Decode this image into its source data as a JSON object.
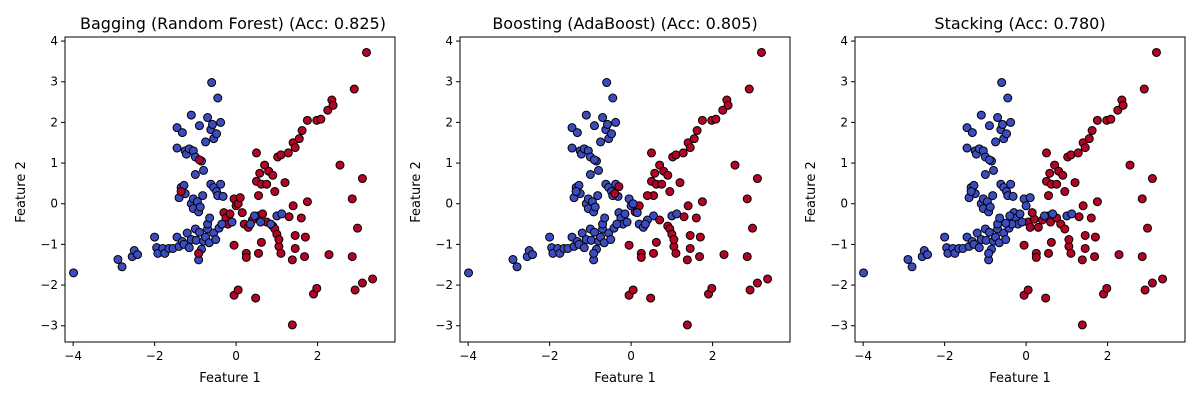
{
  "chart_data": [
    {
      "type": "scatter",
      "title": "Bagging (Random Forest) (Acc: 0.825)",
      "xlabel": "Feature 1",
      "ylabel": "Feature 2",
      "xlim": [
        -4.2,
        3.9
      ],
      "ylim": [
        -3.4,
        4.1
      ],
      "xticks": [
        -4,
        -2,
        0,
        2
      ],
      "yticks": [
        -3,
        -2,
        -1,
        0,
        1,
        2,
        3,
        4
      ],
      "grid": false,
      "colors": {
        "class_0": "#3b4cc0",
        "class_1": "#b40426",
        "edge": "#000000"
      }
    },
    {
      "type": "scatter",
      "title": "Boosting (AdaBoost) (Acc: 0.805)",
      "xlabel": "Feature 1",
      "ylabel": "Feature 2",
      "xlim": [
        -4.2,
        3.9
      ],
      "ylim": [
        -3.4,
        4.1
      ],
      "xticks": [
        -4,
        -2,
        0,
        2
      ],
      "yticks": [
        -3,
        -2,
        -1,
        0,
        1,
        2,
        3,
        4
      ],
      "grid": false,
      "colors": {
        "class_0": "#3b4cc0",
        "class_1": "#b40426",
        "edge": "#000000"
      }
    },
    {
      "type": "scatter",
      "title": "Stacking (Acc: 0.780)",
      "xlabel": "Feature 1",
      "ylabel": "Feature 2",
      "xlim": [
        -4.2,
        3.9
      ],
      "ylim": [
        -3.4,
        4.1
      ],
      "xticks": [
        -4,
        -2,
        0,
        2
      ],
      "yticks": [
        -3,
        -2,
        -1,
        0,
        1,
        2,
        3,
        4
      ],
      "grid": false,
      "colors": {
        "class_0": "#3b4cc0",
        "class_1": "#b40426",
        "edge": "#000000"
      }
    }
  ],
  "points": {
    "common": [
      {
        "x": -3.99,
        "y": -1.7,
        "c": 0
      },
      {
        "x": -2.9,
        "y": -1.37,
        "c": 0
      },
      {
        "x": -2.8,
        "y": -1.55,
        "c": 0
      },
      {
        "x": -2.55,
        "y": -1.3,
        "c": 0
      },
      {
        "x": -2.5,
        "y": -1.15,
        "c": 0
      },
      {
        "x": -2.42,
        "y": -1.25,
        "c": 0
      },
      {
        "x": -2.0,
        "y": -0.82,
        "c": 0
      },
      {
        "x": -1.95,
        "y": -1.08,
        "c": 0
      },
      {
        "x": -1.92,
        "y": -1.22,
        "c": 0
      },
      {
        "x": -1.8,
        "y": -1.1,
        "c": 0
      },
      {
        "x": -1.75,
        "y": -1.22,
        "c": 0
      },
      {
        "x": -1.65,
        "y": -1.1,
        "c": 0
      },
      {
        "x": -1.55,
        "y": -1.1,
        "c": 0
      },
      {
        "x": -1.45,
        "y": -0.82,
        "c": 0
      },
      {
        "x": -1.4,
        "y": -1.05,
        "c": 0
      },
      {
        "x": -1.32,
        "y": -0.93,
        "c": 0
      },
      {
        "x": -1.28,
        "y": -1.0,
        "c": 0
      },
      {
        "x": -1.2,
        "y": -0.72,
        "c": 0
      },
      {
        "x": -1.15,
        "y": -1.08,
        "c": 0
      },
      {
        "x": -1.1,
        "y": -0.88,
        "c": 0
      },
      {
        "x": -1.0,
        "y": -0.62,
        "c": 0
      },
      {
        "x": -0.98,
        "y": -0.9,
        "c": 0
      },
      {
        "x": -0.92,
        "y": -1.38,
        "c": 0
      },
      {
        "x": -0.9,
        "y": -0.7,
        "c": 0
      },
      {
        "x": -0.85,
        "y": -1.12,
        "c": 0
      },
      {
        "x": -0.8,
        "y": -0.92,
        "c": 0
      },
      {
        "x": -0.75,
        "y": -0.82,
        "c": 0
      },
      {
        "x": -0.7,
        "y": -0.62,
        "c": 0
      },
      {
        "x": -0.66,
        "y": -0.96,
        "c": 0
      },
      {
        "x": -0.55,
        "y": -0.72,
        "c": 0
      },
      {
        "x": -0.5,
        "y": -0.88,
        "c": 0
      },
      {
        "x": -0.42,
        "y": -0.6,
        "c": 0
      },
      {
        "x": -1.45,
        "y": 1.37,
        "c": 0
      },
      {
        "x": -1.45,
        "y": 1.87,
        "c": 0
      },
      {
        "x": -1.32,
        "y": 1.75,
        "c": 0
      },
      {
        "x": -1.25,
        "y": 1.3,
        "c": 0
      },
      {
        "x": -1.22,
        "y": 1.22,
        "c": 0
      },
      {
        "x": -1.15,
        "y": 1.35,
        "c": 0
      },
      {
        "x": -1.1,
        "y": 2.18,
        "c": 0
      },
      {
        "x": -1.05,
        "y": 1.3,
        "c": 0
      },
      {
        "x": -1.0,
        "y": 1.15,
        "c": 0
      },
      {
        "x": -0.9,
        "y": 1.92,
        "c": 0
      },
      {
        "x": -0.85,
        "y": 1.05,
        "c": 0
      },
      {
        "x": -0.8,
        "y": 0.82,
        "c": 0
      },
      {
        "x": -0.75,
        "y": 1.52,
        "c": 0
      },
      {
        "x": -0.7,
        "y": 2.12,
        "c": 0
      },
      {
        "x": -0.62,
        "y": 1.82,
        "c": 0
      },
      {
        "x": -0.6,
        "y": 2.98,
        "c": 0
      },
      {
        "x": -0.58,
        "y": 1.95,
        "c": 0
      },
      {
        "x": -0.55,
        "y": 1.6,
        "c": 0
      },
      {
        "x": -0.48,
        "y": 1.72,
        "c": 0
      },
      {
        "x": -0.45,
        "y": 2.6,
        "c": 0
      },
      {
        "x": -0.38,
        "y": 2.0,
        "c": 0
      },
      {
        "x": -1.4,
        "y": 0.15,
        "c": 0
      },
      {
        "x": -1.35,
        "y": 0.4,
        "c": 0
      },
      {
        "x": -1.28,
        "y": 0.45,
        "c": 0
      },
      {
        "x": -1.25,
        "y": 0.25,
        "c": 0
      },
      {
        "x": -1.1,
        "y": 0.0,
        "c": 0
      },
      {
        "x": -1.05,
        "y": 0.12,
        "c": 0
      },
      {
        "x": -1.05,
        "y": -0.12,
        "c": 0
      },
      {
        "x": -1.0,
        "y": 0.72,
        "c": 0
      },
      {
        "x": -0.95,
        "y": 0.05,
        "c": 0
      },
      {
        "x": -0.92,
        "y": -0.2,
        "c": 0
      },
      {
        "x": -0.88,
        "y": -0.08,
        "c": 0
      },
      {
        "x": -0.82,
        "y": 0.2,
        "c": 0
      },
      {
        "x": -0.7,
        "y": -0.5,
        "c": 0
      },
      {
        "x": -0.65,
        "y": -0.35,
        "c": 0
      },
      {
        "x": -0.62,
        "y": 0.48,
        "c": 0
      },
      {
        "x": -0.55,
        "y": 0.4,
        "c": 0
      },
      {
        "x": -0.48,
        "y": 0.3,
        "c": 0
      },
      {
        "x": -0.45,
        "y": 0.2,
        "c": 0
      },
      {
        "x": -0.38,
        "y": 0.48,
        "c": 0
      },
      {
        "x": -0.32,
        "y": 0.18,
        "c": 0
      },
      {
        "x": 1.0,
        "y": -0.3,
        "c": 0
      },
      {
        "x": 1.12,
        "y": -0.25,
        "c": 0
      },
      {
        "x": 0.55,
        "y": -0.3,
        "c": 0
      },
      {
        "x": -0.05,
        "y": -1.02,
        "c": 1
      },
      {
        "x": -0.05,
        "y": -2.25,
        "c": 1
      },
      {
        "x": 0.05,
        "y": -2.12,
        "c": 1
      },
      {
        "x": 0.25,
        "y": -1.22,
        "c": 1
      },
      {
        "x": 0.25,
        "y": -1.32,
        "c": 1
      },
      {
        "x": 0.48,
        "y": -2.32,
        "c": 1
      },
      {
        "x": 0.55,
        "y": -1.22,
        "c": 1
      },
      {
        "x": 0.62,
        "y": -0.95,
        "c": 1
      },
      {
        "x": 1.05,
        "y": -1.05,
        "c": 1
      },
      {
        "x": 1.1,
        "y": -1.22,
        "c": 1
      },
      {
        "x": 1.38,
        "y": -1.38,
        "c": 1
      },
      {
        "x": 1.38,
        "y": -2.98,
        "c": 1
      },
      {
        "x": 1.45,
        "y": -1.1,
        "c": 1
      },
      {
        "x": 1.68,
        "y": -1.3,
        "c": 1
      },
      {
        "x": 1.9,
        "y": -2.22,
        "c": 1
      },
      {
        "x": 1.98,
        "y": -2.08,
        "c": 1
      },
      {
        "x": 2.28,
        "y": -1.25,
        "c": 1
      },
      {
        "x": 2.85,
        "y": -1.3,
        "c": 1
      },
      {
        "x": 2.92,
        "y": -2.12,
        "c": 1
      },
      {
        "x": 3.1,
        "y": -1.95,
        "c": 1
      },
      {
        "x": 3.35,
        "y": -1.85,
        "c": 1
      },
      {
        "x": 2.98,
        "y": -0.6,
        "c": 1
      },
      {
        "x": 1.3,
        "y": -0.32,
        "c": 1
      },
      {
        "x": 1.4,
        "y": -0.05,
        "c": 1
      },
      {
        "x": 1.45,
        "y": -0.78,
        "c": 1
      },
      {
        "x": 1.6,
        "y": -0.35,
        "c": 1
      },
      {
        "x": 1.7,
        "y": -0.82,
        "c": 1
      },
      {
        "x": 1.75,
        "y": 0.05,
        "c": 1
      },
      {
        "x": 0.5,
        "y": 0.55,
        "c": 1
      },
      {
        "x": 0.55,
        "y": 0.2,
        "c": 1
      },
      {
        "x": 0.58,
        "y": 0.75,
        "c": 1
      },
      {
        "x": 0.62,
        "y": 0.48,
        "c": 1
      },
      {
        "x": 0.7,
        "y": 0.95,
        "c": 1
      },
      {
        "x": 0.75,
        "y": 0.48,
        "c": 1
      },
      {
        "x": 0.8,
        "y": 0.8,
        "c": 1
      },
      {
        "x": 0.9,
        "y": 0.7,
        "c": 1
      },
      {
        "x": 0.95,
        "y": 0.3,
        "c": 1
      },
      {
        "x": 1.02,
        "y": 1.15,
        "c": 1
      },
      {
        "x": 1.1,
        "y": 1.2,
        "c": 1
      },
      {
        "x": 1.2,
        "y": 0.52,
        "c": 1
      },
      {
        "x": 1.28,
        "y": 1.25,
        "c": 1
      },
      {
        "x": 1.4,
        "y": 1.5,
        "c": 1
      },
      {
        "x": 1.45,
        "y": 1.38,
        "c": 1
      },
      {
        "x": 1.55,
        "y": 1.6,
        "c": 1
      },
      {
        "x": 1.62,
        "y": 1.8,
        "c": 1
      },
      {
        "x": 1.75,
        "y": 2.05,
        "c": 1
      },
      {
        "x": 1.98,
        "y": 2.05,
        "c": 1
      },
      {
        "x": 2.08,
        "y": 2.08,
        "c": 1
      },
      {
        "x": 2.25,
        "y": 2.3,
        "c": 1
      },
      {
        "x": 2.35,
        "y": 2.55,
        "c": 1
      },
      {
        "x": 2.38,
        "y": 2.42,
        "c": 1
      },
      {
        "x": 2.55,
        "y": 0.95,
        "c": 1
      },
      {
        "x": 2.85,
        "y": 0.12,
        "c": 1
      },
      {
        "x": 2.9,
        "y": 2.82,
        "c": 1
      },
      {
        "x": 3.1,
        "y": 0.62,
        "c": 1
      },
      {
        "x": 3.2,
        "y": 3.72,
        "c": 1
      },
      {
        "x": 0.5,
        "y": 1.25,
        "c": 1
      }
    ],
    "per_chart": [
      [
        {
          "x": -1.35,
          "y": 0.3,
          "c": 1
        },
        {
          "x": -0.9,
          "y": 1.08,
          "c": 1
        },
        {
          "x": -0.92,
          "y": -1.22,
          "c": 1
        },
        {
          "x": -0.3,
          "y": -0.22,
          "c": 1
        },
        {
          "x": -0.25,
          "y": -0.35,
          "c": 1
        },
        {
          "x": -0.2,
          "y": -0.5,
          "c": 1
        },
        {
          "x": -0.15,
          "y": -0.25,
          "c": 1
        },
        {
          "x": -0.05,
          "y": 0.12,
          "c": 1
        },
        {
          "x": 0.0,
          "y": -0.05,
          "c": 1
        },
        {
          "x": 0.05,
          "y": 0.0,
          "c": 1
        },
        {
          "x": 0.1,
          "y": 0.15,
          "c": 1
        },
        {
          "x": 0.15,
          "y": -0.22,
          "c": 1
        },
        {
          "x": 0.2,
          "y": -0.5,
          "c": 1
        },
        {
          "x": 0.3,
          "y": -0.58,
          "c": 1
        },
        {
          "x": 0.4,
          "y": -0.4,
          "c": 1
        },
        {
          "x": 0.65,
          "y": -0.25,
          "c": 1
        },
        {
          "x": 0.75,
          "y": -0.45,
          "c": 1
        },
        {
          "x": 0.9,
          "y": -0.55,
          "c": 1
        },
        {
          "x": 0.95,
          "y": -0.62,
          "c": 1
        },
        {
          "x": 1.0,
          "y": -0.75,
          "c": 1
        },
        {
          "x": 1.05,
          "y": -0.88,
          "c": 1
        },
        {
          "x": -0.35,
          "y": -0.5,
          "c": 0
        },
        {
          "x": -0.1,
          "y": -0.45,
          "c": 0
        },
        {
          "x": 0.35,
          "y": -0.5,
          "c": 0
        },
        {
          "x": 0.45,
          "y": -0.3,
          "c": 0
        },
        {
          "x": 0.6,
          "y": -0.45,
          "c": 0
        },
        {
          "x": 0.85,
          "y": -0.5,
          "c": 0
        }
      ],
      [
        {
          "x": 0.4,
          "y": 0.2,
          "c": 1
        },
        {
          "x": 0.1,
          "y": -0.2,
          "c": 1
        },
        {
          "x": 0.2,
          "y": -0.05,
          "c": 1
        },
        {
          "x": 0.9,
          "y": -0.55,
          "c": 1
        },
        {
          "x": 0.95,
          "y": -0.62,
          "c": 1
        },
        {
          "x": 1.0,
          "y": -0.75,
          "c": 1
        },
        {
          "x": 1.05,
          "y": -0.88,
          "c": 1
        },
        {
          "x": 0.7,
          "y": -0.4,
          "c": 1
        },
        {
          "x": -0.3,
          "y": -0.22,
          "c": 0
        },
        {
          "x": -0.25,
          "y": -0.35,
          "c": 0
        },
        {
          "x": -0.2,
          "y": -0.5,
          "c": 0
        },
        {
          "x": -0.15,
          "y": -0.25,
          "c": 0
        },
        {
          "x": -0.05,
          "y": 0.12,
          "c": 0
        },
        {
          "x": 0.0,
          "y": -0.05,
          "c": 0
        },
        {
          "x": 0.05,
          "y": 0.0,
          "c": 0
        },
        {
          "x": 0.15,
          "y": -0.22,
          "c": 0
        },
        {
          "x": 0.2,
          "y": -0.5,
          "c": 0
        },
        {
          "x": 0.3,
          "y": -0.58,
          "c": 0
        },
        {
          "x": 0.4,
          "y": -0.4,
          "c": 0
        },
        {
          "x": -0.35,
          "y": -0.5,
          "c": 0
        },
        {
          "x": -0.1,
          "y": -0.45,
          "c": 0
        },
        {
          "x": 0.35,
          "y": -0.5,
          "c": 0
        },
        {
          "x": -0.9,
          "y": 1.08,
          "c": 0
        },
        {
          "x": -0.92,
          "y": -1.22,
          "c": 0
        },
        {
          "x": -1.35,
          "y": 0.3,
          "c": 0
        },
        {
          "x": -0.3,
          "y": 0.42,
          "c": 1
        },
        {
          "x": -0.4,
          "y": 0.25,
          "c": 1
        }
      ],
      [
        {
          "x": 0.05,
          "y": -0.45,
          "c": 1
        },
        {
          "x": 0.1,
          "y": -0.58,
          "c": 1
        },
        {
          "x": 0.2,
          "y": -0.38,
          "c": 1
        },
        {
          "x": 0.3,
          "y": -0.58,
          "c": 1
        },
        {
          "x": 0.4,
          "y": -0.4,
          "c": 1
        },
        {
          "x": 0.6,
          "y": -0.45,
          "c": 1
        },
        {
          "x": 0.75,
          "y": -0.35,
          "c": 1
        },
        {
          "x": 0.85,
          "y": -0.5,
          "c": 1
        },
        {
          "x": 0.95,
          "y": -0.62,
          "c": 1
        },
        {
          "x": 1.05,
          "y": -0.88,
          "c": 1
        },
        {
          "x": -0.3,
          "y": -0.22,
          "c": 0
        },
        {
          "x": -0.25,
          "y": -0.35,
          "c": 0
        },
        {
          "x": -0.2,
          "y": -0.5,
          "c": 0
        },
        {
          "x": -0.15,
          "y": -0.25,
          "c": 0
        },
        {
          "x": -0.05,
          "y": 0.12,
          "c": 0
        },
        {
          "x": 0.0,
          "y": -0.05,
          "c": 0
        },
        {
          "x": -0.35,
          "y": -0.5,
          "c": 0
        },
        {
          "x": -0.1,
          "y": -0.45,
          "c": 0
        },
        {
          "x": -0.9,
          "y": 1.08,
          "c": 0
        },
        {
          "x": -0.92,
          "y": -1.22,
          "c": 0
        },
        {
          "x": -1.35,
          "y": 0.3,
          "c": 0
        },
        {
          "x": 0.45,
          "y": -0.3,
          "c": 0
        },
        {
          "x": 0.65,
          "y": -0.25,
          "c": 0
        },
        {
          "x": -0.5,
          "y": -0.48,
          "c": 0
        },
        {
          "x": -0.4,
          "y": -0.3,
          "c": 0
        },
        {
          "x": 0.1,
          "y": 0.15,
          "c": 0
        },
        {
          "x": 0.15,
          "y": -0.22,
          "c": 1
        }
      ]
    ]
  }
}
